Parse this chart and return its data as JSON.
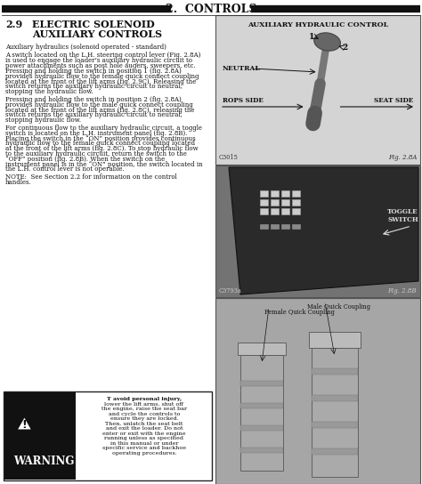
{
  "page_bg": "#ffffff",
  "header_text": "2.  CONTROLS",
  "section_num": "2.9",
  "section_title_line1": "ELECTRIC SOLENOID",
  "section_title_line2": "AUXILIARY CONTROLS",
  "subtitle": "Auxiliary hydraulics (solenoid operated - standard)",
  "body_para1_lines": [
    "A switch located on the L.H. steering control lever (Fig. 2.8A)",
    "is used to engage the loader’s auxiliary hydraulic circuit to",
    "power attachments such as post hole augers, sweepers, etc.",
    "Pressing and holding the switch in position 1 (fig. 2.8A)",
    "provides hydraulic flow to the female quick connect coupling",
    "located at the front of the lift arms (fig. 2.9C). Releasing the",
    "switch returns the auxiliary hydraulic circuit to neutral,",
    "stopping the hydraulic flow."
  ],
  "body_para2_lines": [
    "Pressing and holding the switch in position 2 (fig. 2.8A)",
    "provides hydraulic flow to the male quick connect coupling",
    "located at the front of the lift arms (fig. 2.8C). releasing the",
    "switch returns the auxiliary hydraulic circuit to neutral,",
    "stopping hydraulic flow."
  ],
  "body_para3_lines": [
    "For continuous flow to the auxiliary hydraulic circuit, a toggle",
    "switch is located on the L.H. instrument panel (fig. 2.8B).",
    "Placing the switch in the “ON” position provides continuous",
    "hydraulic flow to the female quick connect coupling located",
    "at the front of the lift arms (fig. 2.8C). To stop hydraulic flow",
    "to the auxiliary hydraulic circuit, return the switch to the",
    "“OFF” position (fig. 2.8B). When the switch on the",
    "instrument panel is in the “ON” position, the switch located in",
    "the L.H. control lever is not operable."
  ],
  "note_lines": [
    "NOTE:  See Section 2.2 for information on the control",
    "handles."
  ],
  "fig1_label": "AUXILIARY HYDRAULIC CONTROL",
  "fig1_caption_left": "C3015",
  "fig1_caption_right": "Fig. 2.8A",
  "fig1_neutral": "NEUTRAL",
  "fig1_rops": "← ROPS SIDE",
  "fig1_seat": "SEAT SIDE →",
  "fig1_n1": "1",
  "fig1_n2": "2",
  "fig2_caption_left": "C3793a",
  "fig2_caption_right": "Fig. 2.8B",
  "fig2_toggle": "TOGGLE\nSWITCH",
  "fig3_female": "Female Quick Coupling",
  "fig3_male": "Male Quick Coupling",
  "warn_title": "WARNING",
  "warn_lines": [
    "T avoid personal injury,",
    "lower the lift arms, shut off",
    "the engine, raise the seat bar",
    "and cycle the controls to",
    "ensure they are locked.",
    "Then, unlatch the seat belt",
    "and exit the loader. Do not",
    "enter or exit with the engine",
    "running unless as specified",
    "in this manual or under",
    "specific service and backhoe",
    "operating procedures."
  ]
}
